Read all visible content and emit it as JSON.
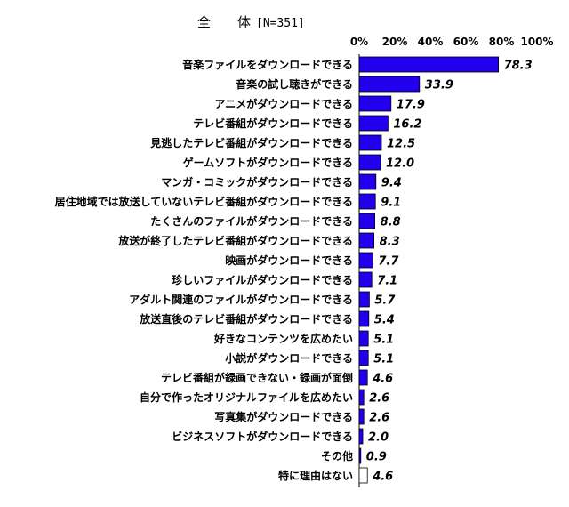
{
  "chart_data": {
    "type": "bar",
    "orientation": "horizontal",
    "title": "全　　体",
    "title_n": "[N=351]",
    "xlim": [
      0,
      100
    ],
    "ticks": [
      "0%",
      "20%",
      "40%",
      "60%",
      "80%",
      "100%"
    ],
    "tick_values": [
      0,
      20,
      40,
      60,
      80,
      100
    ],
    "categories": [
      "音楽ファイルをダウンロードできる",
      "音楽の試し聴きができる",
      "アニメがダウンロードできる",
      "テレビ番組がダウンロードできる",
      "見逃したテレビ番組がダウンロードできる",
      "ゲームソフトがダウンロードできる",
      "マンガ・コミックがダウンロードできる",
      "居住地域では放送していないテレビ番組がダウンロードできる",
      "たくさんのファイルがダウンロードできる",
      "放送が終了したテレビ番組がダウンロードできる",
      "映画がダウンロードできる",
      "珍しいファイルがダウンロードできる",
      "アダルト関連のファイルがダウンロードできる",
      "放送直後のテレビ番組がダウンロードできる",
      "好きなコンテンツを広めたい",
      "小説がダウンロードできる",
      "テレビ番組が録画できない・録画が面倒",
      "自分で作ったオリジナルファイルを広めたい",
      "写真集がダウンロードできる",
      "ビジネスソフトがダウンロードできる",
      "その他",
      "特に理由はない"
    ],
    "values": [
      78.3,
      33.9,
      17.9,
      16.2,
      12.5,
      12.0,
      9.4,
      9.1,
      8.8,
      8.3,
      7.7,
      7.1,
      5.7,
      5.4,
      5.1,
      5.1,
      4.6,
      2.6,
      2.6,
      2.0,
      0.9,
      4.6
    ],
    "value_labels": [
      "78.3",
      "33.9",
      "17.9",
      "16.2",
      "12.5",
      "12.0",
      "9.4",
      "9.1",
      "8.8",
      "8.3",
      "7.7",
      "7.1",
      "5.7",
      "5.4",
      "5.1",
      "5.1",
      "4.6",
      "2.6",
      "2.6",
      "2.0",
      "0.9",
      "4.6"
    ],
    "bar_color": "#2200ee",
    "special_bar_color": "#ffffff",
    "special_bar_index": 21,
    "grid": false,
    "legend": "none"
  }
}
